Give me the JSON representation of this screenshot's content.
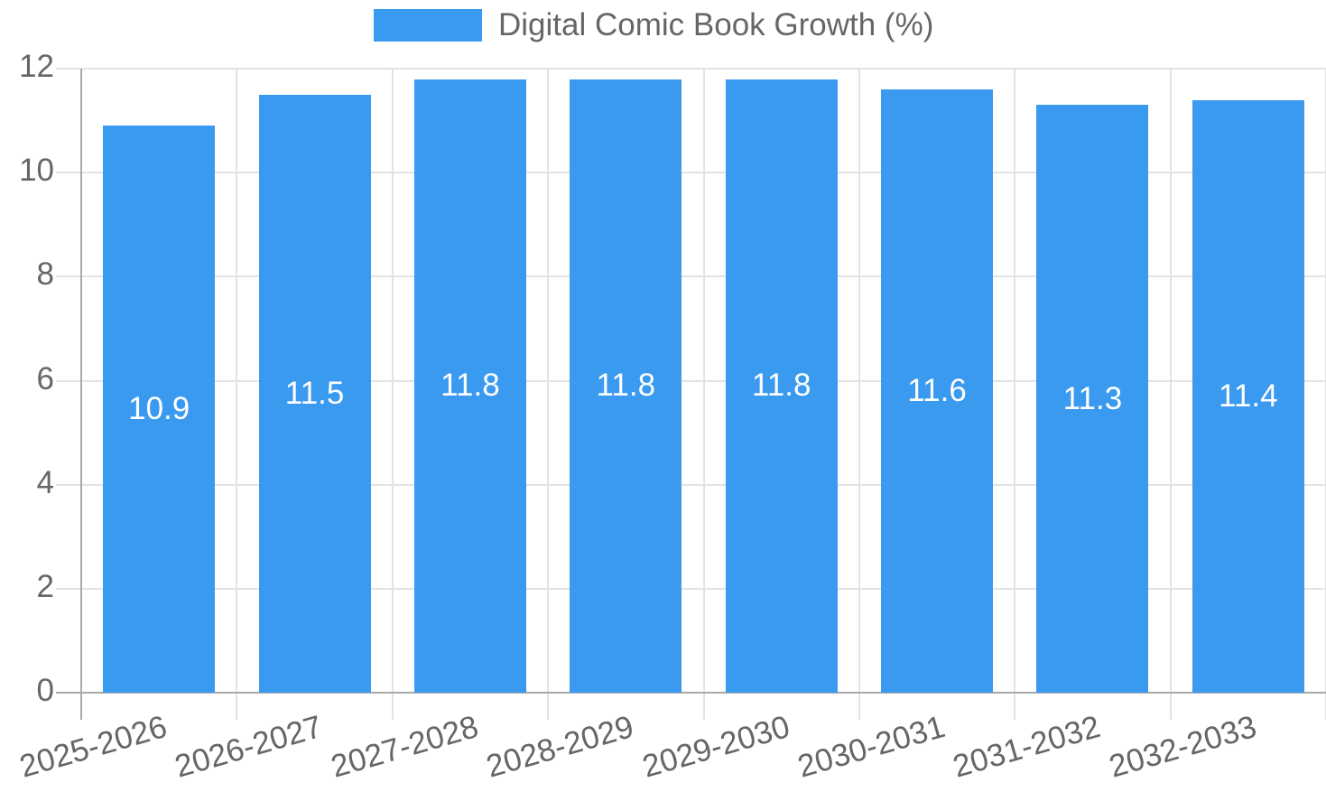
{
  "legend": {
    "label": "Digital Comic Book Growth (%)",
    "color": "#3a9af0"
  },
  "chart_data": {
    "type": "bar",
    "title": "",
    "xlabel": "",
    "ylabel": "",
    "categories": [
      "2025-2026",
      "2026-2027",
      "2027-2028",
      "2028-2029",
      "2029-2030",
      "2030-2031",
      "2031-2032",
      "2032-2033"
    ],
    "series": [
      {
        "name": "Digital Comic Book Growth (%)",
        "values": [
          10.9,
          11.5,
          11.8,
          11.8,
          11.8,
          11.6,
          11.3,
          11.4
        ],
        "color": "#3a9af0"
      }
    ],
    "ylim": [
      0,
      12
    ],
    "yticks": [
      0,
      2,
      4,
      6,
      8,
      10,
      12
    ],
    "grid": true,
    "legend_position": "top",
    "data_labels": true
  }
}
